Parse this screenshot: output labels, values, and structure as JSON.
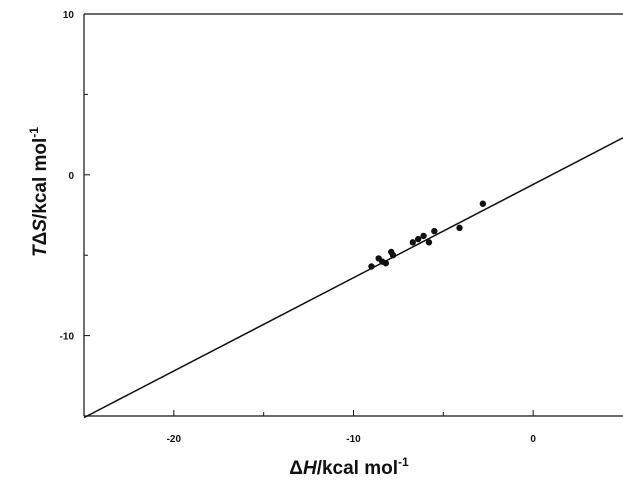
{
  "chart_data": {
    "type": "scatter",
    "xlabel_parts": [
      "Δ",
      "H",
      "/kcal  mol",
      "-1"
    ],
    "ylabel_parts": [
      "T",
      "Δ",
      "S",
      "/kcal mol",
      "-1"
    ],
    "xlim": [
      -25,
      5
    ],
    "ylim": [
      -15,
      10
    ],
    "x_ticks": [
      -20,
      -10,
      0
    ],
    "x_tick_labels": [
      "-20",
      "-10",
      "0"
    ],
    "y_ticks": [
      -10,
      0,
      10
    ],
    "y_tick_labels": [
      "-10",
      "0",
      "10"
    ],
    "x_minor_ticks": [
      -15,
      -5
    ],
    "y_minor_ticks": [
      -5,
      5
    ],
    "grid": false,
    "legend": "none",
    "points": [
      {
        "x": -9.0,
        "y": -5.7
      },
      {
        "x": -8.6,
        "y": -5.2
      },
      {
        "x": -8.4,
        "y": -5.4
      },
      {
        "x": -8.2,
        "y": -5.5
      },
      {
        "x": -7.9,
        "y": -4.8
      },
      {
        "x": -7.8,
        "y": -5.0
      },
      {
        "x": -6.7,
        "y": -4.2
      },
      {
        "x": -6.4,
        "y": -4.0
      },
      {
        "x": -6.1,
        "y": -3.8
      },
      {
        "x": -5.8,
        "y": -4.2
      },
      {
        "x": -5.5,
        "y": -3.5
      },
      {
        "x": -4.1,
        "y": -3.3
      },
      {
        "x": -2.8,
        "y": -1.8
      }
    ],
    "fit_line": {
      "x": [
        -25,
        5
      ],
      "y": [
        -15.1,
        2.3
      ]
    },
    "colors": {
      "marks": "#111111",
      "background": "#ffffff"
    }
  }
}
